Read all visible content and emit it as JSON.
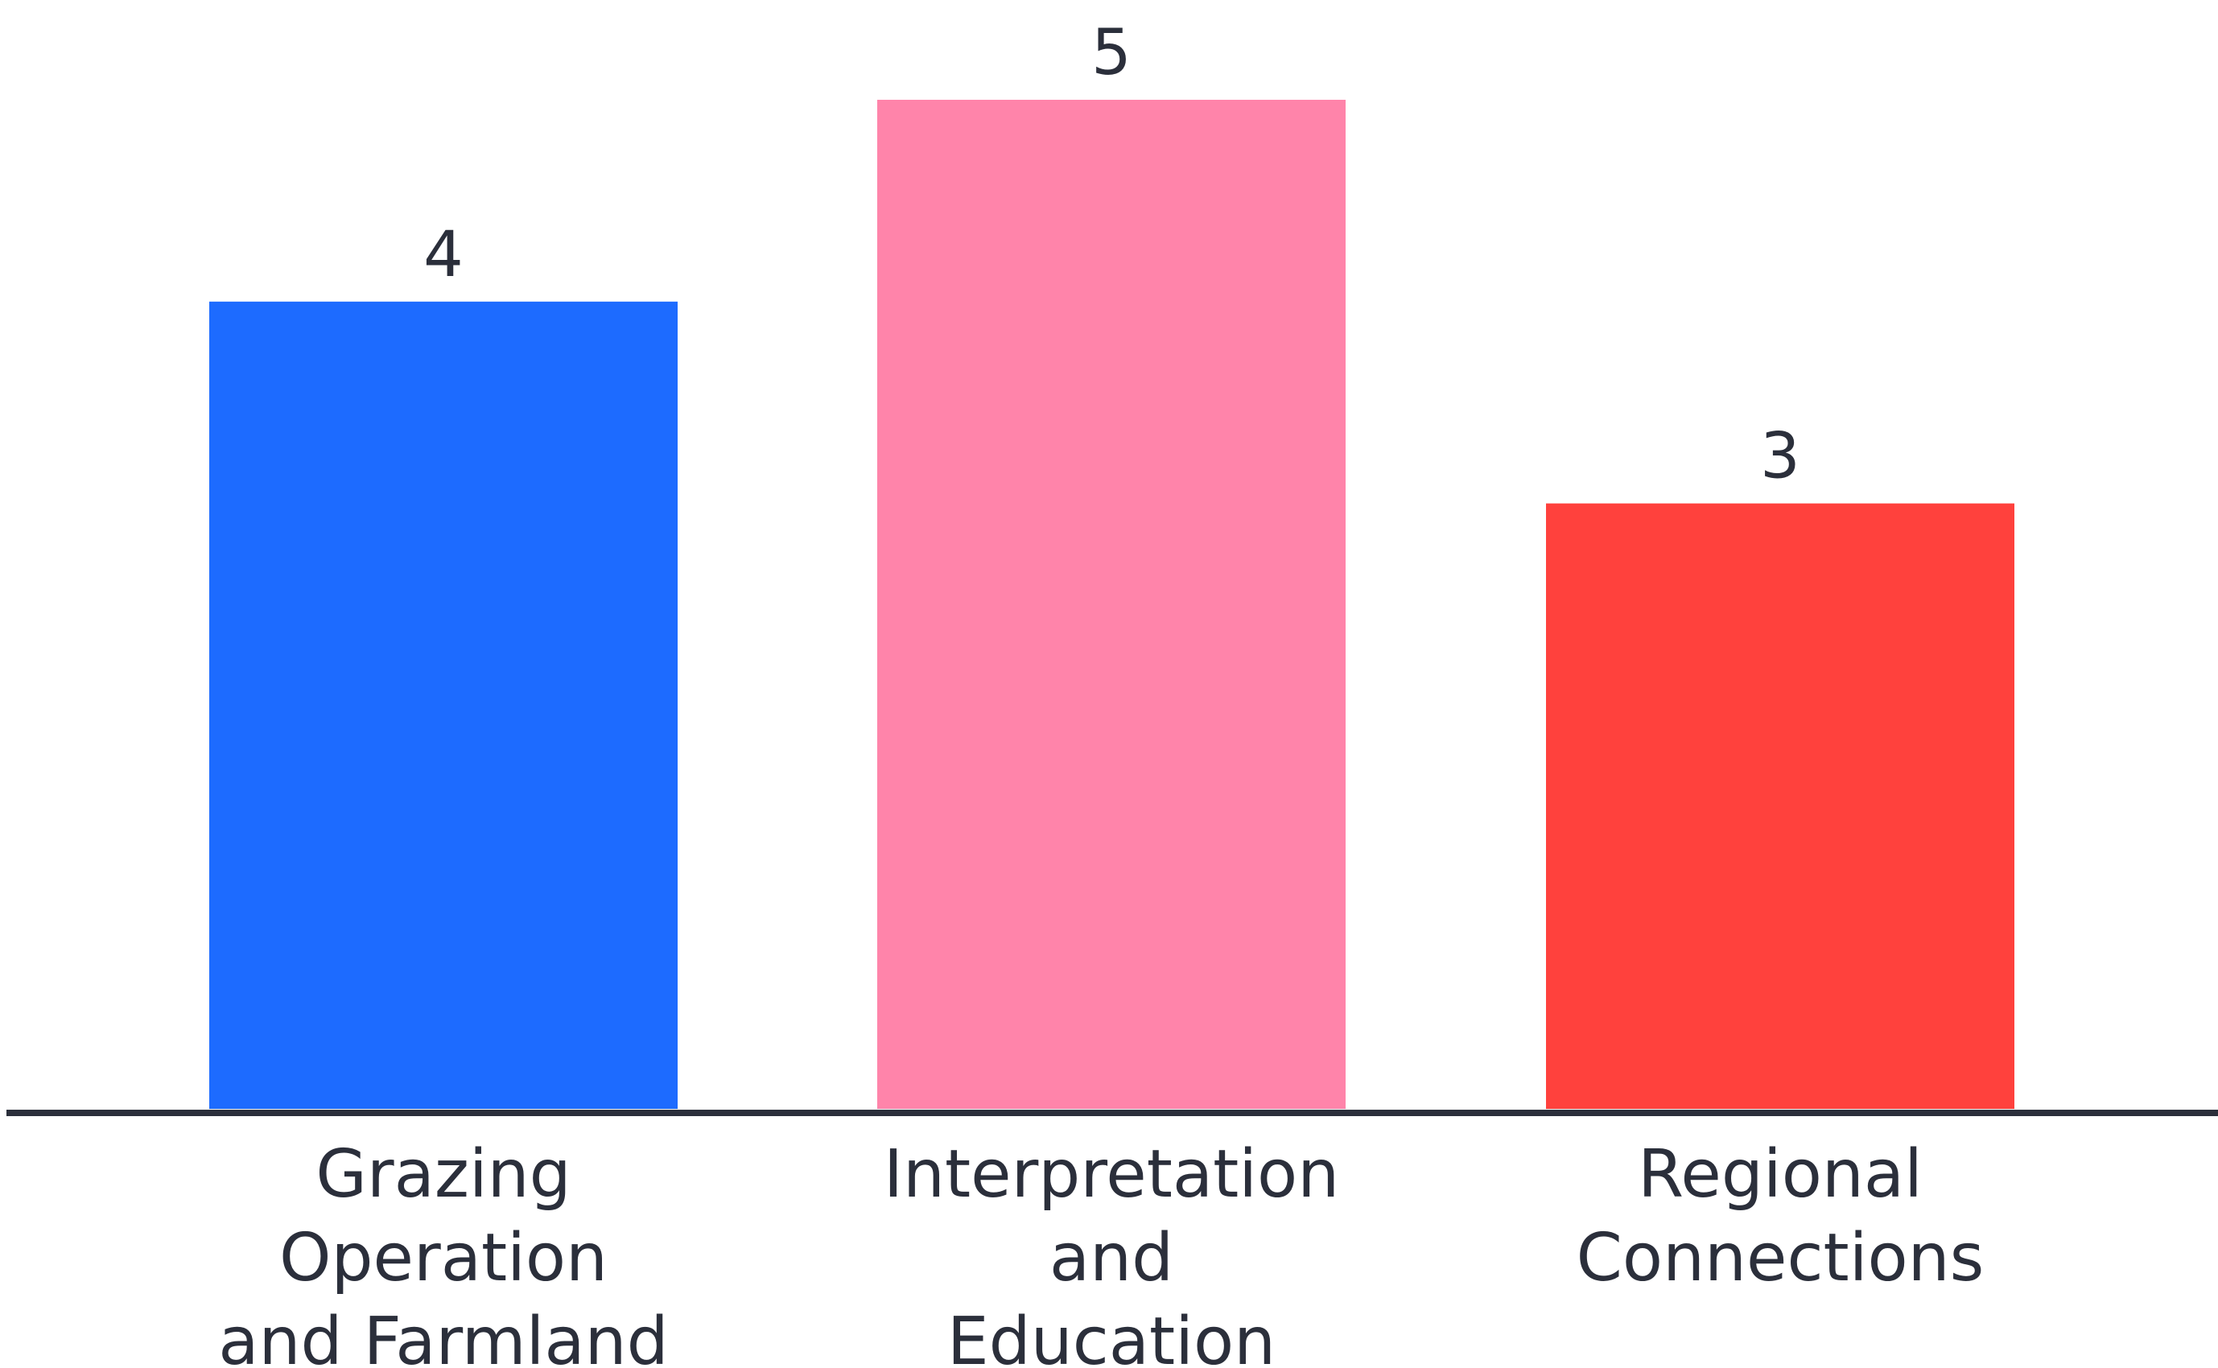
{
  "chart_data": {
    "type": "bar",
    "title": "",
    "xlabel": "",
    "ylabel": "",
    "categories": [
      [
        "Grazing",
        "Operation",
        "and Farmland"
      ],
      [
        "Interpretation",
        "and",
        "Education"
      ],
      [
        "Regional",
        "Connections"
      ]
    ],
    "values": [
      4,
      5,
      3
    ],
    "value_labels": [
      "4",
      "5",
      "3"
    ],
    "colors": [
      "#1d6bff",
      "#ff84aa",
      "#ff413d"
    ],
    "ylim": [
      0,
      5
    ],
    "grid": false,
    "legend": "none"
  },
  "colors": {
    "axis": "#2b2f3b",
    "text": "#2b2f3b",
    "background": "#ffffff"
  }
}
